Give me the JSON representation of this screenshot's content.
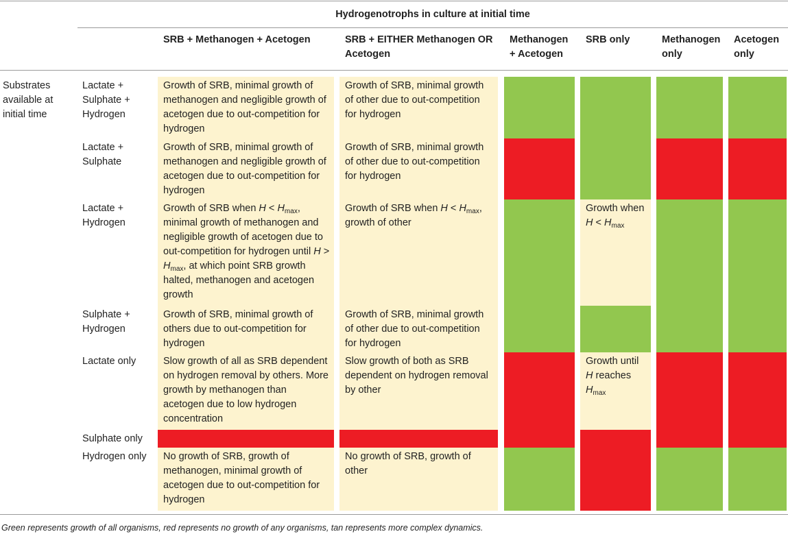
{
  "header": {
    "title": "Hydrogenotrophs in culture at initial time",
    "row_group": "Substrates available at initial time",
    "columns": [
      "SRB + Methanogen + Acetogen",
      "SRB + EITHER Methanogen OR Acetogen",
      "Methanogen + Acetogen",
      "SRB only",
      "Methanogen only",
      "Acetogen only"
    ]
  },
  "colors": {
    "green": "#92c74f",
    "red": "#ed1c24",
    "tan": "#fdf3cf"
  },
  "table": {
    "rows": [
      {
        "label": "Lactate + Sulphate + Hydrogen",
        "cells": [
          {
            "fill": "tan",
            "text": [
              "Growth of SRB, minimal growth of methanogen and negligible growth of acetogen due to out-competition for hydrogen"
            ]
          },
          {
            "fill": "tan",
            "text": [
              "Growth of SRB, minimal growth of other due to out-competition for hydrogen"
            ]
          },
          {
            "fill": "green"
          },
          {
            "fill": "green"
          },
          {
            "fill": "green"
          },
          {
            "fill": "green"
          }
        ]
      },
      {
        "label": "Lactate + Sulphate",
        "cells": [
          {
            "fill": "tan",
            "text": [
              "Growth of SRB, minimal growth of methanogen and negligible growth of acetogen due to out-competition for hydrogen"
            ]
          },
          {
            "fill": "tan",
            "text": [
              "Growth of SRB, minimal growth of other due to out-competition for hydrogen"
            ]
          },
          {
            "fill": "red"
          },
          {
            "fill": "green"
          },
          {
            "fill": "red"
          },
          {
            "fill": "red"
          }
        ]
      },
      {
        "label": "Lactate + Hydrogen",
        "cells": [
          {
            "fill": "tan",
            "text": [
              "Growth of SRB when ",
              {
                "i": "H"
              },
              " < ",
              {
                "i": "H"
              },
              {
                "sub": "max"
              },
              ", minimal growth of methanogen and negligible growth of acetogen due to out-competition for hydrogen until ",
              {
                "i": "H"
              },
              " > ",
              {
                "i": "H"
              },
              {
                "sub": "max"
              },
              ", at which point SRB growth halted, methanogen and acetogen growth"
            ]
          },
          {
            "fill": "tan",
            "text": [
              "Growth of SRB when ",
              {
                "i": "H"
              },
              " < ",
              {
                "i": "H"
              },
              {
                "sub": "max"
              },
              ", growth of other"
            ]
          },
          {
            "fill": "green"
          },
          {
            "fill": "tan",
            "text": [
              "Growth when ",
              {
                "i": "H"
              },
              " < ",
              {
                "i": "H"
              },
              {
                "sub": "max"
              }
            ]
          },
          {
            "fill": "green"
          },
          {
            "fill": "green"
          }
        ]
      },
      {
        "label": "Sulphate + Hydrogen",
        "cells": [
          {
            "fill": "tan",
            "text": [
              "Growth of SRB, minimal growth of others due to out-competition for hydrogen"
            ]
          },
          {
            "fill": "tan",
            "text": [
              "Growth of SRB, minimal growth of other due to out-competition for hydrogen"
            ]
          },
          {
            "fill": "green"
          },
          {
            "fill": "green"
          },
          {
            "fill": "green"
          },
          {
            "fill": "green"
          }
        ]
      },
      {
        "label": "Lactate only",
        "cells": [
          {
            "fill": "tan",
            "text": [
              "Slow growth of all as SRB dependent on hydrogen removal by others. More growth by methanogen than acetogen due to low hydrogen concentration"
            ]
          },
          {
            "fill": "tan",
            "text": [
              "Slow growth of both as SRB dependent on hydrogen removal by other"
            ]
          },
          {
            "fill": "red"
          },
          {
            "fill": "tan",
            "text": [
              "Growth until ",
              {
                "i": "H"
              },
              " reaches ",
              {
                "i": "H"
              },
              {
                "sub": "max"
              }
            ]
          },
          {
            "fill": "red"
          },
          {
            "fill": "red"
          }
        ]
      },
      {
        "label": "Sulphate only",
        "cells": [
          {
            "fill": "red"
          },
          {
            "fill": "red"
          },
          {
            "fill": "red"
          },
          {
            "fill": "red"
          },
          {
            "fill": "red"
          },
          {
            "fill": "red"
          }
        ]
      },
      {
        "label": "Hydrogen only",
        "cells": [
          {
            "fill": "tan",
            "text": [
              "No growth of SRB, growth of methanogen, minimal growth of acetogen due to out-competition for hydrogen"
            ]
          },
          {
            "fill": "tan",
            "text": [
              "No growth of SRB, growth of other"
            ]
          },
          {
            "fill": "green"
          },
          {
            "fill": "red"
          },
          {
            "fill": "green"
          },
          {
            "fill": "green"
          }
        ]
      }
    ]
  },
  "footnote": "Green represents growth of all organisms, red represents no growth of any organisms, tan represents more complex dynamics."
}
